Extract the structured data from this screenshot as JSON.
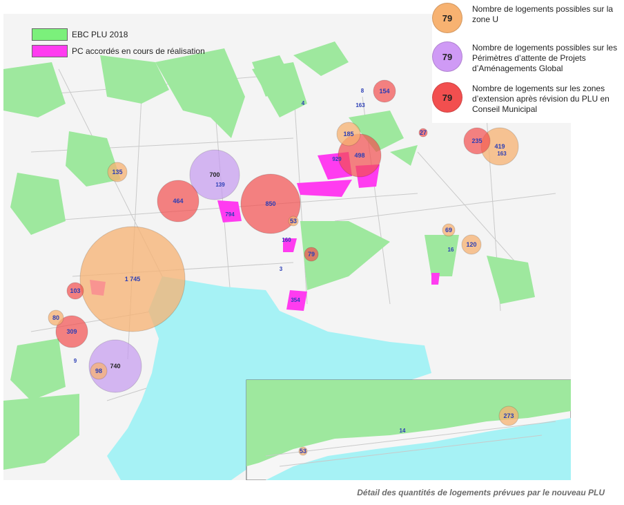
{
  "legend_top_left": {
    "ebc": {
      "label": "EBC PLU 2018",
      "color": "#7bf07b"
    },
    "pc": {
      "label": "PC accordés en cours de réalisation",
      "color": "#ff3cf0"
    }
  },
  "legend_right": [
    {
      "value": "79",
      "label": "Nombre de logements possibles sur la zone U",
      "color": "#f7b271"
    },
    {
      "value": "79",
      "label": "Nombre de logements possibles sur les Périmètres d’attente de Projets d’Aménagements Global",
      "color": "#cf9af5"
    },
    {
      "value": "79",
      "label": "Nombre de logements sur les zones d’extension après révision du PLU en Conseil Municipal",
      "color": "#f24f4f"
    }
  ],
  "colors": {
    "zone_u": "#f7b271",
    "papag": "#c59af0",
    "extension": "#f24f4f",
    "sea": "#a6f2f5",
    "green": "#9ee89e",
    "pink": "#ff3cf0"
  },
  "bubbles_main": [
    {
      "label": "1 745",
      "cat": "zone_u"
    },
    {
      "label": "850",
      "cat": "extension"
    },
    {
      "label": "700",
      "cat": "papag"
    },
    {
      "label": "740",
      "cat": "papag"
    },
    {
      "label": "498",
      "cat": "extension"
    },
    {
      "label": "464",
      "cat": "extension"
    },
    {
      "label": "419",
      "cat": "zone_u"
    },
    {
      "label": "309",
      "cat": "extension"
    },
    {
      "label": "235",
      "cat": "extension"
    },
    {
      "label": "185",
      "cat": "zone_u"
    },
    {
      "label": "154",
      "cat": "extension"
    },
    {
      "label": "135",
      "cat": "zone_u"
    },
    {
      "label": "120",
      "cat": "zone_u"
    },
    {
      "label": "103",
      "cat": "extension"
    },
    {
      "label": "98",
      "cat": "zone_u"
    },
    {
      "label": "80",
      "cat": "zone_u"
    },
    {
      "label": "79",
      "cat": "extension"
    },
    {
      "label": "69",
      "cat": "zone_u"
    },
    {
      "label": "53",
      "cat": "zone_u"
    },
    {
      "label": "27",
      "cat": "extension"
    }
  ],
  "bubbles_inset": [
    {
      "label": "273",
      "cat": "zone_u"
    },
    {
      "label": "53",
      "cat": "zone_u"
    }
  ],
  "small_labels": [
    "929",
    "794",
    "354",
    "163",
    "139",
    "160",
    "163",
    "4",
    "8",
    "3",
    "9",
    "16",
    "14"
  ],
  "caption": "Détail des quantités de logements prévues par le nouveau PLU"
}
